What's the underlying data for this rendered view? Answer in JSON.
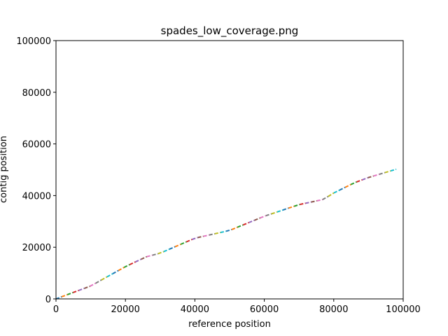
{
  "chart_data": {
    "type": "line",
    "title": "spades_low_coverage.png",
    "xlabel": "reference position",
    "ylabel": "contig position",
    "xlim": [
      0,
      100000
    ],
    "ylim": [
      0,
      100000
    ],
    "grid": false,
    "xticks": [
      {
        "value": 0,
        "label": "0"
      },
      {
        "value": 20000,
        "label": "20000"
      },
      {
        "value": 40000,
        "label": "40000"
      },
      {
        "value": 60000,
        "label": "60000"
      },
      {
        "value": 80000,
        "label": "80000"
      },
      {
        "value": 100000,
        "label": "100000"
      }
    ],
    "yticks": [
      {
        "value": 0,
        "label": "0"
      },
      {
        "value": 20000,
        "label": "20000"
      },
      {
        "value": 40000,
        "label": "40000"
      },
      {
        "value": 60000,
        "label": "60000"
      },
      {
        "value": 80000,
        "label": "80000"
      },
      {
        "value": 100000,
        "label": "100000"
      }
    ],
    "palette": [
      "#1f77b4",
      "#ff7f0e",
      "#2ca02c",
      "#d62728",
      "#9467bd",
      "#8c564b",
      "#e377c2",
      "#7f7f7f",
      "#bcbd22",
      "#17becf"
    ],
    "path": [
      [
        0,
        0
      ],
      [
        10000,
        5000
      ],
      [
        20000,
        12500
      ],
      [
        26000,
        16300
      ],
      [
        30000,
        17700
      ],
      [
        40000,
        23500
      ],
      [
        50000,
        26500
      ],
      [
        60000,
        32000
      ],
      [
        70000,
        36500
      ],
      [
        77000,
        38500
      ],
      [
        80000,
        41000
      ],
      [
        86000,
        45000
      ],
      [
        90000,
        47000
      ],
      [
        98000,
        50200
      ]
    ],
    "series_count": 60
  }
}
